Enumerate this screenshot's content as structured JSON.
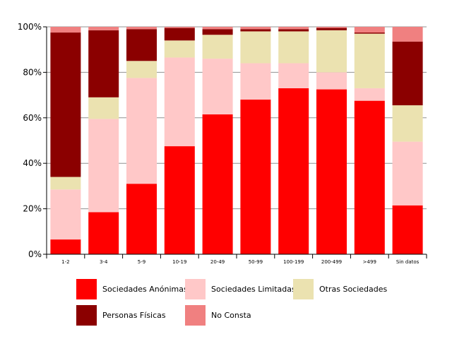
{
  "chart_data": {
    "type": "bar",
    "stacked": true,
    "categories": [
      "1-2",
      "3-4",
      "5-9",
      "10-19",
      "20-49",
      "50-99",
      "100-199",
      "200-499",
      ">499",
      "Sin datos"
    ],
    "ylim": [
      0,
      100
    ],
    "yticks": [
      "0%",
      "20%",
      "40%",
      "60%",
      "80%",
      "100%"
    ],
    "grid": true,
    "legend_position": "bottom",
    "series": [
      {
        "name": "Sociedades Anónimas",
        "color": "#ff0000",
        "values": [
          6.5,
          18.5,
          31,
          47.5,
          61.5,
          68,
          73,
          72.5,
          67.5,
          21.5
        ]
      },
      {
        "name": "Sociedades Limitadas",
        "color": "#ffc8c8",
        "values": [
          22,
          41,
          46.5,
          39,
          24.5,
          16,
          11,
          7.5,
          5.5,
          28
        ]
      },
      {
        "name": "Otras Sociedades",
        "color": "#ebe2b0",
        "values": [
          5.5,
          9.5,
          7.5,
          7.5,
          10.5,
          14,
          14,
          18.5,
          24,
          16
        ]
      },
      {
        "name": "Personas Físicas",
        "color": "#8b0000",
        "values": [
          63.5,
          29.5,
          14,
          5.5,
          2.5,
          1,
          1,
          1,
          0.5,
          28
        ]
      },
      {
        "name": "No Consta",
        "color": "#f08080",
        "values": [
          2.5,
          1.5,
          1,
          0.5,
          1,
          1,
          1,
          0.5,
          2.5,
          6.5
        ]
      }
    ]
  }
}
